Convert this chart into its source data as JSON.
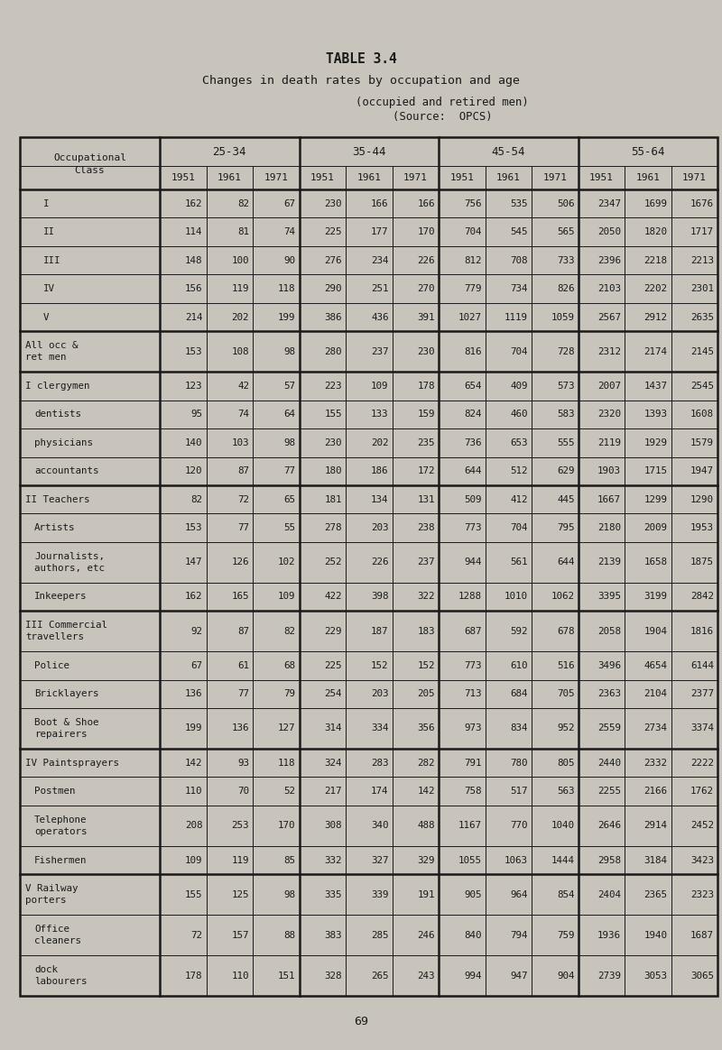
{
  "title1": "TABLE 3.4",
  "title2": "Changes in death rates by occupation and age",
  "subtitle_line1": "(occupied and retired men)",
  "subtitle_line2": "(Source:  OPCS)",
  "bg_color": "#c8c4bc",
  "text_color": "#1a1a1a",
  "age_groups": [
    "25-34",
    "35-44",
    "45-54",
    "55-64"
  ],
  "years": [
    "1951",
    "1961",
    "1971"
  ],
  "rows": [
    {
      "label": "I",
      "indent": 2,
      "two_line": false,
      "thick_top": true,
      "data": [
        162,
        82,
        67,
        230,
        166,
        166,
        756,
        535,
        506,
        2347,
        1699,
        1676
      ]
    },
    {
      "label": "II",
      "indent": 2,
      "two_line": false,
      "thick_top": false,
      "data": [
        114,
        81,
        74,
        225,
        177,
        170,
        704,
        545,
        565,
        2050,
        1820,
        1717
      ]
    },
    {
      "label": "III",
      "indent": 2,
      "two_line": false,
      "thick_top": false,
      "data": [
        148,
        100,
        90,
        276,
        234,
        226,
        812,
        708,
        733,
        2396,
        2218,
        2213
      ]
    },
    {
      "label": "IV",
      "indent": 2,
      "two_line": false,
      "thick_top": false,
      "data": [
        156,
        119,
        118,
        290,
        251,
        270,
        779,
        734,
        826,
        2103,
        2202,
        2301
      ]
    },
    {
      "label": "V",
      "indent": 2,
      "two_line": false,
      "thick_top": false,
      "data": [
        214,
        202,
        199,
        386,
        436,
        391,
        1027,
        1119,
        1059,
        2567,
        2912,
        2635
      ]
    },
    {
      "label": "All occ &\nret men",
      "indent": 0,
      "two_line": true,
      "thick_top": true,
      "data": [
        153,
        108,
        98,
        280,
        237,
        230,
        816,
        704,
        728,
        2312,
        2174,
        2145
      ]
    },
    {
      "label": "I clergymen",
      "indent": 0,
      "two_line": false,
      "thick_top": true,
      "data": [
        123,
        42,
        57,
        223,
        109,
        178,
        654,
        409,
        573,
        2007,
        1437,
        2545
      ]
    },
    {
      "label": "dentists",
      "indent": 1,
      "two_line": false,
      "thick_top": false,
      "data": [
        95,
        74,
        64,
        155,
        133,
        159,
        824,
        460,
        583,
        2320,
        1393,
        1608
      ]
    },
    {
      "label": "physicians",
      "indent": 1,
      "two_line": false,
      "thick_top": false,
      "data": [
        140,
        103,
        98,
        230,
        202,
        235,
        736,
        653,
        555,
        2119,
        1929,
        1579
      ]
    },
    {
      "label": "accountants",
      "indent": 1,
      "two_line": false,
      "thick_top": false,
      "data": [
        120,
        87,
        77,
        180,
        186,
        172,
        644,
        512,
        629,
        1903,
        1715,
        1947
      ]
    },
    {
      "label": "II Teachers",
      "indent": 0,
      "two_line": false,
      "thick_top": true,
      "data": [
        82,
        72,
        65,
        181,
        134,
        131,
        509,
        412,
        445,
        1667,
        1299,
        1290
      ]
    },
    {
      "label": "Artists",
      "indent": 1,
      "two_line": false,
      "thick_top": false,
      "data": [
        153,
        77,
        55,
        278,
        203,
        238,
        773,
        704,
        795,
        2180,
        2009,
        1953
      ]
    },
    {
      "label": "Journalists,\nauthors, etc",
      "indent": 1,
      "two_line": true,
      "thick_top": false,
      "data": [
        147,
        126,
        102,
        252,
        226,
        237,
        944,
        561,
        644,
        2139,
        1658,
        1875
      ]
    },
    {
      "label": "Inkeepers",
      "indent": 1,
      "two_line": false,
      "thick_top": false,
      "data": [
        162,
        165,
        109,
        422,
        398,
        322,
        1288,
        1010,
        1062,
        3395,
        3199,
        2842
      ]
    },
    {
      "label": "III Commercial\ntravellers",
      "indent": 0,
      "two_line": true,
      "thick_top": true,
      "data": [
        92,
        87,
        82,
        229,
        187,
        183,
        687,
        592,
        678,
        2058,
        1904,
        1816
      ]
    },
    {
      "label": "Police",
      "indent": 1,
      "two_line": false,
      "thick_top": false,
      "data": [
        67,
        61,
        68,
        225,
        152,
        152,
        773,
        610,
        516,
        3496,
        4654,
        6144
      ]
    },
    {
      "label": "Bricklayers",
      "indent": 1,
      "two_line": false,
      "thick_top": false,
      "data": [
        136,
        77,
        79,
        254,
        203,
        205,
        713,
        684,
        705,
        2363,
        2104,
        2377
      ]
    },
    {
      "label": "Boot & Shoe\nrepairers",
      "indent": 1,
      "two_line": true,
      "thick_top": false,
      "data": [
        199,
        136,
        127,
        314,
        334,
        356,
        973,
        834,
        952,
        2559,
        2734,
        3374
      ]
    },
    {
      "label": "IV Paintsprayers",
      "indent": 0,
      "two_line": false,
      "thick_top": true,
      "data": [
        142,
        93,
        118,
        324,
        283,
        282,
        791,
        780,
        805,
        2440,
        2332,
        2222
      ]
    },
    {
      "label": "Postmen",
      "indent": 1,
      "two_line": false,
      "thick_top": false,
      "data": [
        110,
        70,
        52,
        217,
        174,
        142,
        758,
        517,
        563,
        2255,
        2166,
        1762
      ]
    },
    {
      "label": "Telephone\noperators",
      "indent": 1,
      "two_line": true,
      "thick_top": false,
      "data": [
        208,
        253,
        170,
        308,
        340,
        488,
        1167,
        770,
        1040,
        2646,
        2914,
        2452
      ]
    },
    {
      "label": "Fishermen",
      "indent": 1,
      "two_line": false,
      "thick_top": false,
      "data": [
        109,
        119,
        85,
        332,
        327,
        329,
        1055,
        1063,
        1444,
        2958,
        3184,
        3423
      ]
    },
    {
      "label": "V Railway\nporters",
      "indent": 0,
      "two_line": true,
      "thick_top": true,
      "data": [
        155,
        125,
        98,
        335,
        339,
        191,
        905,
        964,
        854,
        2404,
        2365,
        2323
      ]
    },
    {
      "label": "Office\ncleaners",
      "indent": 1,
      "two_line": true,
      "thick_top": false,
      "data": [
        72,
        157,
        88,
        383,
        285,
        246,
        840,
        794,
        759,
        1936,
        1940,
        1687
      ]
    },
    {
      "label": "dock\nlabourers",
      "indent": 1,
      "two_line": true,
      "thick_top": false,
      "data": [
        178,
        110,
        151,
        328,
        265,
        243,
        994,
        947,
        904,
        2739,
        3053,
        3065
      ]
    }
  ],
  "page_number": "69"
}
